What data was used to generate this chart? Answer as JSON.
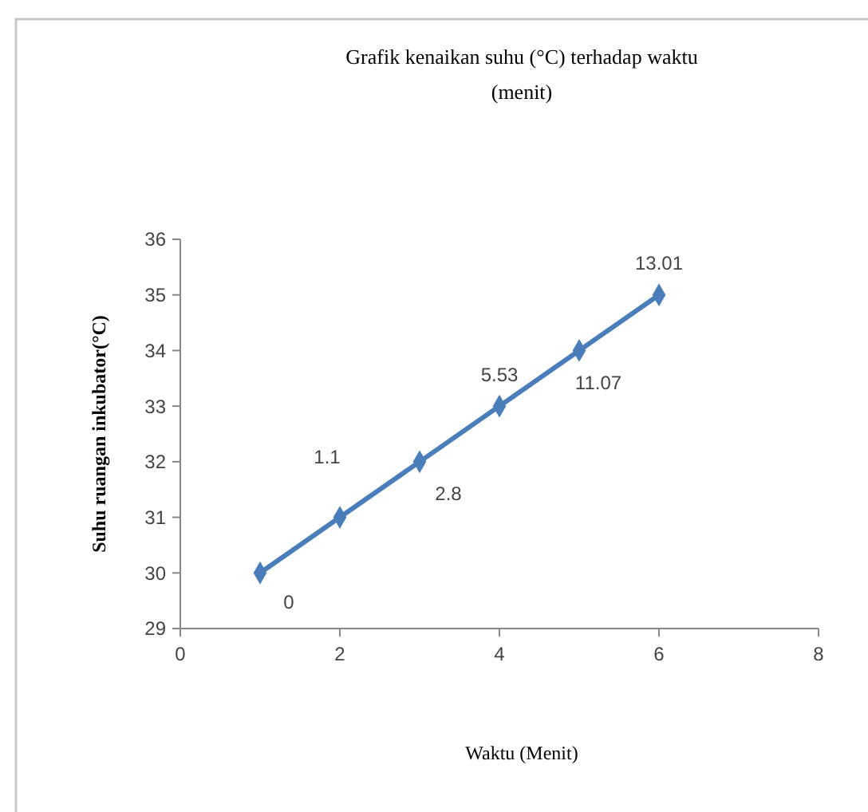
{
  "chart_data": {
    "type": "line",
    "title": "Grafik kenaikan suhu (°C) terhadap waktu (menit)",
    "xlabel": "Waktu (Menit)",
    "ylabel": "Suhu ruangan inkubator(°C)",
    "x": [
      1,
      2,
      3,
      4,
      5,
      6
    ],
    "series": [
      {
        "color": "#4a7ebb",
        "values": [
          30,
          31,
          32,
          33,
          34,
          35
        ]
      }
    ],
    "xlim": [
      0,
      8
    ],
    "xticks": [
      0,
      2,
      4,
      6,
      8
    ],
    "ylim": [
      29,
      36
    ],
    "yticks": [
      29,
      30,
      31,
      32,
      33,
      34,
      35,
      36
    ],
    "grid": false,
    "marker": "diamond",
    "line_style": "solid",
    "annotations": [
      {
        "text": "0",
        "x": 1,
        "y": 30
      },
      {
        "text": "1.1",
        "x": 2,
        "y": 31
      },
      {
        "text": "2.8",
        "x": 3,
        "y": 32
      },
      {
        "text": "5.53",
        "x": 4,
        "y": 33
      },
      {
        "text": "11.07",
        "x": 5,
        "y": 34
      },
      {
        "text": "13.01",
        "x": 6,
        "y": 35
      }
    ]
  }
}
